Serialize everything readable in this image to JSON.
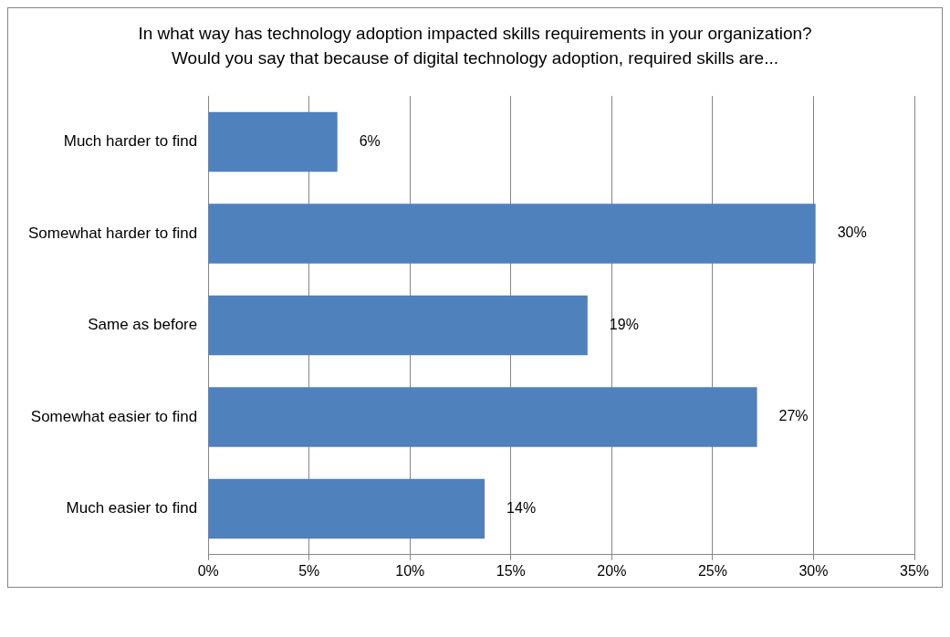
{
  "chart_data": {
    "type": "bar",
    "orientation": "horizontal",
    "title": "In what way has technology adoption impacted skills requirements in your organization? Would you say that because of digital technology adoption, required skills are...",
    "categories": [
      "Much harder to find",
      "Somewhat harder to find",
      "Same as before",
      "Somewhat easier to find",
      "Much easier to find"
    ],
    "values": [
      6.4,
      30.1,
      18.8,
      27.2,
      13.7
    ],
    "value_labels": [
      "6%",
      "30%",
      "19%",
      "27%",
      "14%"
    ],
    "color": "#4f81bd",
    "xlim": [
      0,
      35
    ],
    "xticks": [
      {
        "value": 0,
        "label": "0%"
      },
      {
        "value": 5,
        "label": "5%"
      },
      {
        "value": 10,
        "label": "10%"
      },
      {
        "value": 15,
        "label": "15%"
      },
      {
        "value": 20,
        "label": "20%"
      },
      {
        "value": 25,
        "label": "25%"
      },
      {
        "value": 30,
        "label": "30%"
      },
      {
        "value": 35,
        "label": "35%"
      }
    ],
    "grid": "x",
    "legend": false
  }
}
